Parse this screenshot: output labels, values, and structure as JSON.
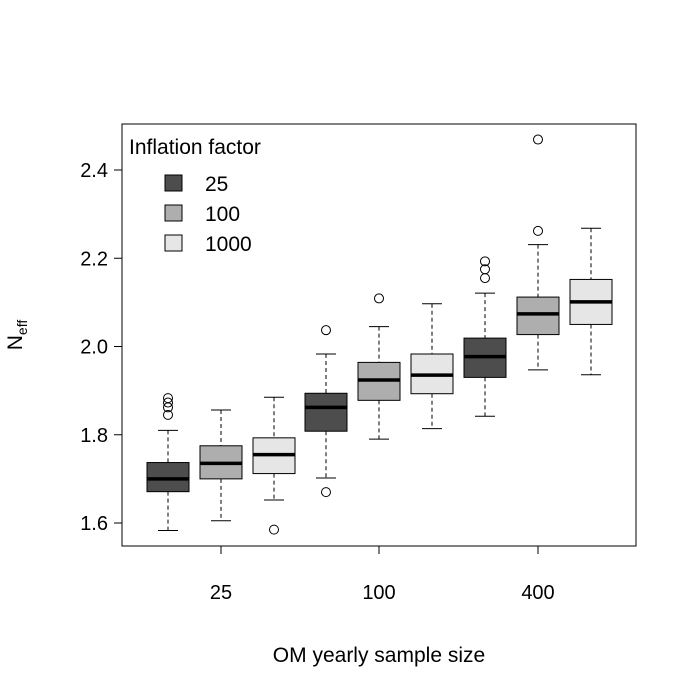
{
  "chart_data": {
    "type": "boxplot",
    "title": "",
    "xlabel": "OM yearly sample size",
    "ylabel": {
      "main": "N",
      "sub": "eff"
    },
    "ylim": [
      1.55,
      2.5
    ],
    "yticks": [
      "1.6",
      "1.8",
      "2.0",
      "2.2",
      "2.4"
    ],
    "ytick_values": [
      1.6,
      1.8,
      2.0,
      2.2,
      2.4
    ],
    "categories": [
      "25",
      "100",
      "400"
    ],
    "legend": {
      "title": "Inflation factor",
      "position": "top-left",
      "entries": [
        {
          "label": "25",
          "color": "#4d4d4d"
        },
        {
          "label": "100",
          "color": "#aeaeae"
        },
        {
          "label": "1000",
          "color": "#e6e6e6"
        }
      ]
    },
    "grid": false,
    "series": [
      {
        "name": "25",
        "color": "#4d4d4d",
        "boxes": [
          {
            "category": "25",
            "whisker_low": 1.583,
            "q1": 1.671,
            "median": 1.7,
            "q3": 1.737,
            "whisker_high": 1.81,
            "outliers": [
              1.845,
              1.862,
              1.873,
              1.883
            ]
          },
          {
            "category": "100",
            "whisker_low": 1.702,
            "q1": 1.808,
            "median": 1.862,
            "q3": 1.894,
            "whisker_high": 1.983,
            "outliers": [
              1.67,
              2.037
            ]
          },
          {
            "category": "400",
            "whisker_low": 1.842,
            "q1": 1.93,
            "median": 1.977,
            "q3": 2.019,
            "whisker_high": 2.121,
            "outliers": [
              2.155,
              2.175,
              2.193
            ]
          }
        ]
      },
      {
        "name": "100",
        "color": "#aeaeae",
        "boxes": [
          {
            "category": "25",
            "whisker_low": 1.605,
            "q1": 1.7,
            "median": 1.735,
            "q3": 1.775,
            "whisker_high": 1.856,
            "outliers": []
          },
          {
            "category": "100",
            "whisker_low": 1.79,
            "q1": 1.878,
            "median": 1.924,
            "q3": 1.964,
            "whisker_high": 2.045,
            "outliers": [
              2.109
            ]
          },
          {
            "category": "400",
            "whisker_low": 1.947,
            "q1": 2.027,
            "median": 2.074,
            "q3": 2.112,
            "whisker_high": 2.231,
            "outliers": [
              2.262,
              2.469
            ]
          }
        ]
      },
      {
        "name": "1000",
        "color": "#e6e6e6",
        "boxes": [
          {
            "category": "25",
            "whisker_low": 1.652,
            "q1": 1.712,
            "median": 1.755,
            "q3": 1.793,
            "whisker_high": 1.885,
            "outliers": [
              1.585
            ]
          },
          {
            "category": "100",
            "whisker_low": 1.814,
            "q1": 1.893,
            "median": 1.935,
            "q3": 1.983,
            "whisker_high": 2.097,
            "outliers": []
          },
          {
            "category": "400",
            "whisker_low": 1.936,
            "q1": 2.05,
            "median": 2.101,
            "q3": 2.152,
            "whisker_high": 2.268,
            "outliers": []
          }
        ]
      }
    ]
  }
}
